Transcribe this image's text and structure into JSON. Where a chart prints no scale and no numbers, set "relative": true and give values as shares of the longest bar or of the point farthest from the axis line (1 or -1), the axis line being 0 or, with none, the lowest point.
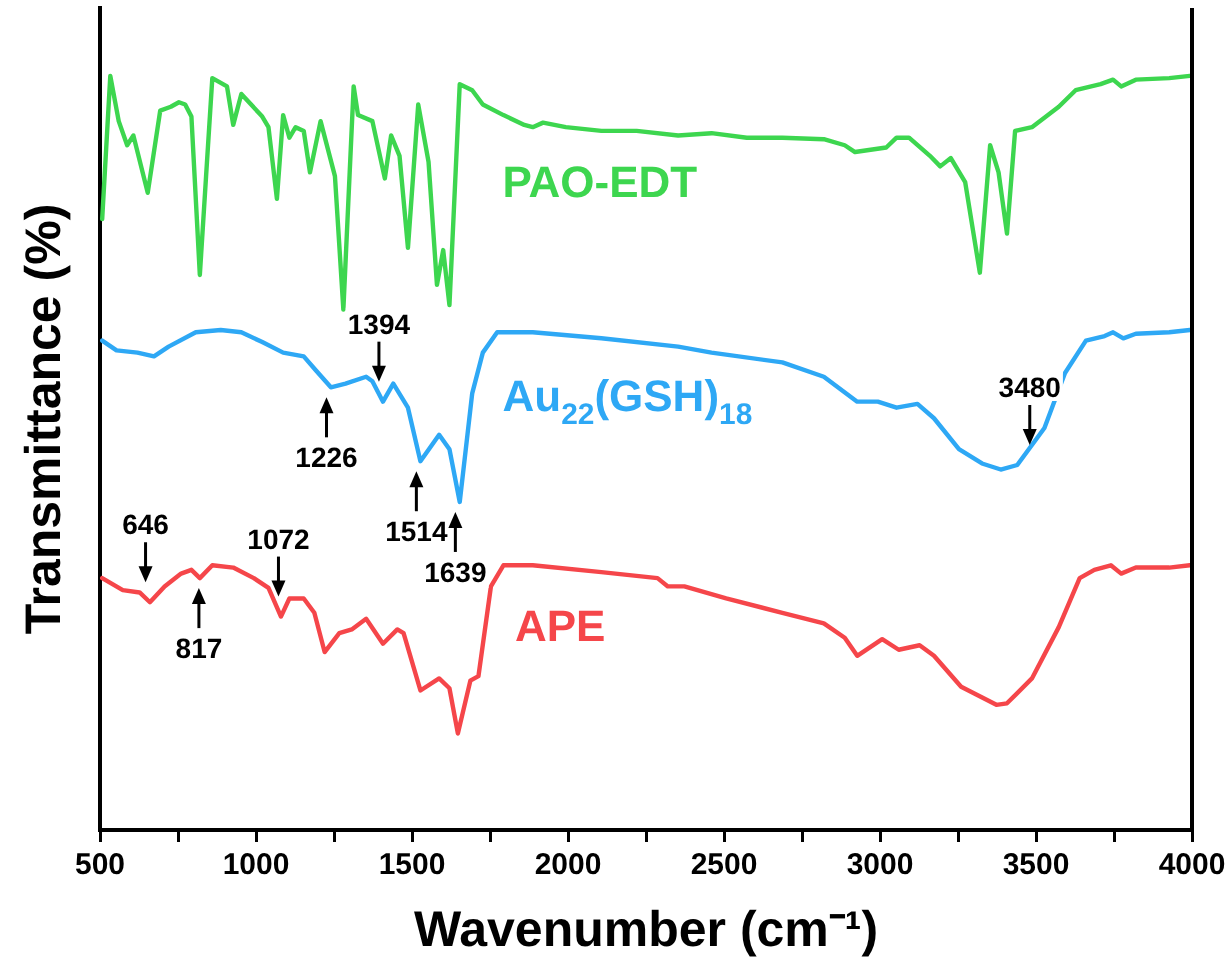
{
  "chart_data": {
    "type": "line",
    "relative": true,
    "xlabel": "Wavenumber (cm⁻¹)",
    "ylabel": "Transmittance (%)",
    "legend": false,
    "grid": false,
    "marker": "none",
    "line_style": "solid",
    "tick_labels": "x",
    "xlim": [
      500,
      4000
    ],
    "xticks": [
      500,
      {
        "value": 750,
        "label": null
      },
      1000,
      {
        "value": 1250,
        "label": null
      },
      1500,
      {
        "value": 1750,
        "label": null
      },
      2000,
      {
        "value": 2250,
        "label": null
      },
      2500,
      {
        "value": 2750,
        "label": null
      },
      3000,
      {
        "value": 3250,
        "label": null
      },
      3500,
      {
        "value": 3750,
        "label": null
      },
      4000
    ],
    "series": [
      {
        "name": "PAO-EDT",
        "color": "#3dd64f",
        "x": [
          507,
          533,
          560,
          587,
          607,
          653,
          693,
          727,
          753,
          773,
          793,
          820,
          840,
          860,
          907,
          927,
          953,
          1020,
          1040,
          1067,
          1087,
          1107,
          1127,
          1153,
          1173,
          1207,
          1253,
          1280,
          1313,
          1327,
          1373,
          1413,
          1433,
          1460,
          1487,
          1520,
          1553,
          1580,
          1600,
          1620,
          1653,
          1693,
          1727,
          1793,
          1860,
          1887,
          1920,
          1993,
          2107,
          2220,
          2353,
          2460,
          2573,
          2687,
          2820,
          2887,
          2920,
          3020,
          3053,
          3093,
          3160,
          3193,
          3227,
          3273,
          3320,
          3353,
          3380,
          3407,
          3433,
          3487,
          3573,
          3627,
          3707,
          3747,
          3773,
          3820,
          3927,
          3993
        ],
        "values": [
          0.81,
          1.0,
          0.94,
          0.908,
          0.921,
          0.845,
          0.954,
          0.959,
          0.965,
          0.962,
          0.946,
          0.736,
          0.867,
          0.997,
          0.986,
          0.935,
          0.976,
          0.946,
          0.932,
          0.837,
          0.948,
          0.918,
          0.932,
          0.927,
          0.872,
          0.94,
          0.867,
          0.69,
          0.986,
          0.948,
          0.94,
          0.864,
          0.921,
          0.894,
          0.772,
          0.962,
          0.886,
          0.723,
          0.769,
          0.696,
          0.989,
          0.981,
          0.962,
          0.948,
          0.935,
          0.932,
          0.938,
          0.932,
          0.927,
          0.927,
          0.921,
          0.924,
          0.918,
          0.918,
          0.916,
          0.908,
          0.899,
          0.905,
          0.918,
          0.918,
          0.894,
          0.88,
          0.891,
          0.859,
          0.739,
          0.908,
          0.872,
          0.791,
          0.927,
          0.932,
          0.959,
          0.981,
          0.989,
          0.995,
          0.986,
          0.995,
          0.997,
          1.0
        ]
      },
      {
        "name": "Au$_{22}$(GSH)$_{18}$",
        "color": "#2ea8f5",
        "x": [
          507,
          553,
          620,
          673,
          720,
          807,
          887,
          953,
          1020,
          1087,
          1153,
          1193,
          1240,
          1287,
          1353,
          1373,
          1407,
          1440,
          1487,
          1527,
          1587,
          1620,
          1653,
          1693,
          1727,
          1773,
          1887,
          2107,
          2353,
          2460,
          2687,
          2820,
          2927,
          2993,
          3053,
          3120,
          3173,
          3253,
          3327,
          3387,
          3440,
          3527,
          3593,
          3660,
          3720,
          3747,
          3780,
          3820,
          3927,
          3993
        ],
        "values": [
          0.649,
          0.636,
          0.633,
          0.628,
          0.641,
          0.66,
          0.663,
          0.66,
          0.647,
          0.633,
          0.628,
          0.609,
          0.587,
          0.592,
          0.601,
          0.595,
          0.568,
          0.592,
          0.56,
          0.489,
          0.524,
          0.505,
          0.435,
          0.579,
          0.633,
          0.66,
          0.66,
          0.652,
          0.641,
          0.633,
          0.62,
          0.601,
          0.568,
          0.568,
          0.56,
          0.565,
          0.546,
          0.505,
          0.486,
          0.478,
          0.484,
          0.533,
          0.606,
          0.649,
          0.655,
          0.66,
          0.652,
          0.658,
          0.66,
          0.663
        ]
      },
      {
        "name": "APE",
        "color": "#f5464a",
        "x": [
          507,
          573,
          627,
          660,
          707,
          760,
          793,
          820,
          860,
          927,
          993,
          1040,
          1080,
          1107,
          1153,
          1187,
          1220,
          1267,
          1307,
          1353,
          1407,
          1453,
          1473,
          1527,
          1587,
          1620,
          1647,
          1687,
          1713,
          1753,
          1793,
          1887,
          2107,
          2287,
          2320,
          2373,
          2507,
          2687,
          2820,
          2887,
          2927,
          3007,
          3060,
          3127,
          3173,
          3260,
          3373,
          3407,
          3487,
          3573,
          3640,
          3687,
          3740,
          3773,
          3820,
          3927,
          3993
        ],
        "values": [
          0.334,
          0.318,
          0.315,
          0.302,
          0.323,
          0.34,
          0.345,
          0.334,
          0.351,
          0.348,
          0.334,
          0.321,
          0.283,
          0.307,
          0.307,
          0.288,
          0.236,
          0.261,
          0.266,
          0.28,
          0.247,
          0.266,
          0.261,
          0.185,
          0.201,
          0.188,
          0.128,
          0.198,
          0.204,
          0.323,
          0.351,
          0.351,
          0.342,
          0.334,
          0.323,
          0.323,
          0.307,
          0.288,
          0.274,
          0.255,
          0.231,
          0.253,
          0.239,
          0.245,
          0.231,
          0.19,
          0.166,
          0.168,
          0.201,
          0.269,
          0.334,
          0.345,
          0.351,
          0.34,
          0.348,
          0.348,
          0.351
        ]
      }
    ],
    "annotations": [
      {
        "text": "646",
        "x": 646,
        "y": 0.302
      },
      {
        "text": "817",
        "x": 817,
        "y": 0.334
      },
      {
        "text": "1072",
        "x": 1072,
        "y": 0.283
      },
      {
        "text": "1226",
        "x": 1226,
        "y": 0.587
      },
      {
        "text": "1394",
        "x": 1394,
        "y": 0.568
      },
      {
        "text": "1514",
        "x": 1514,
        "y": 0.489
      },
      {
        "text": "1639",
        "x": 1639,
        "y": 0.435
      },
      {
        "text": "3480",
        "x": 3480,
        "y": 0.484
      }
    ]
  }
}
